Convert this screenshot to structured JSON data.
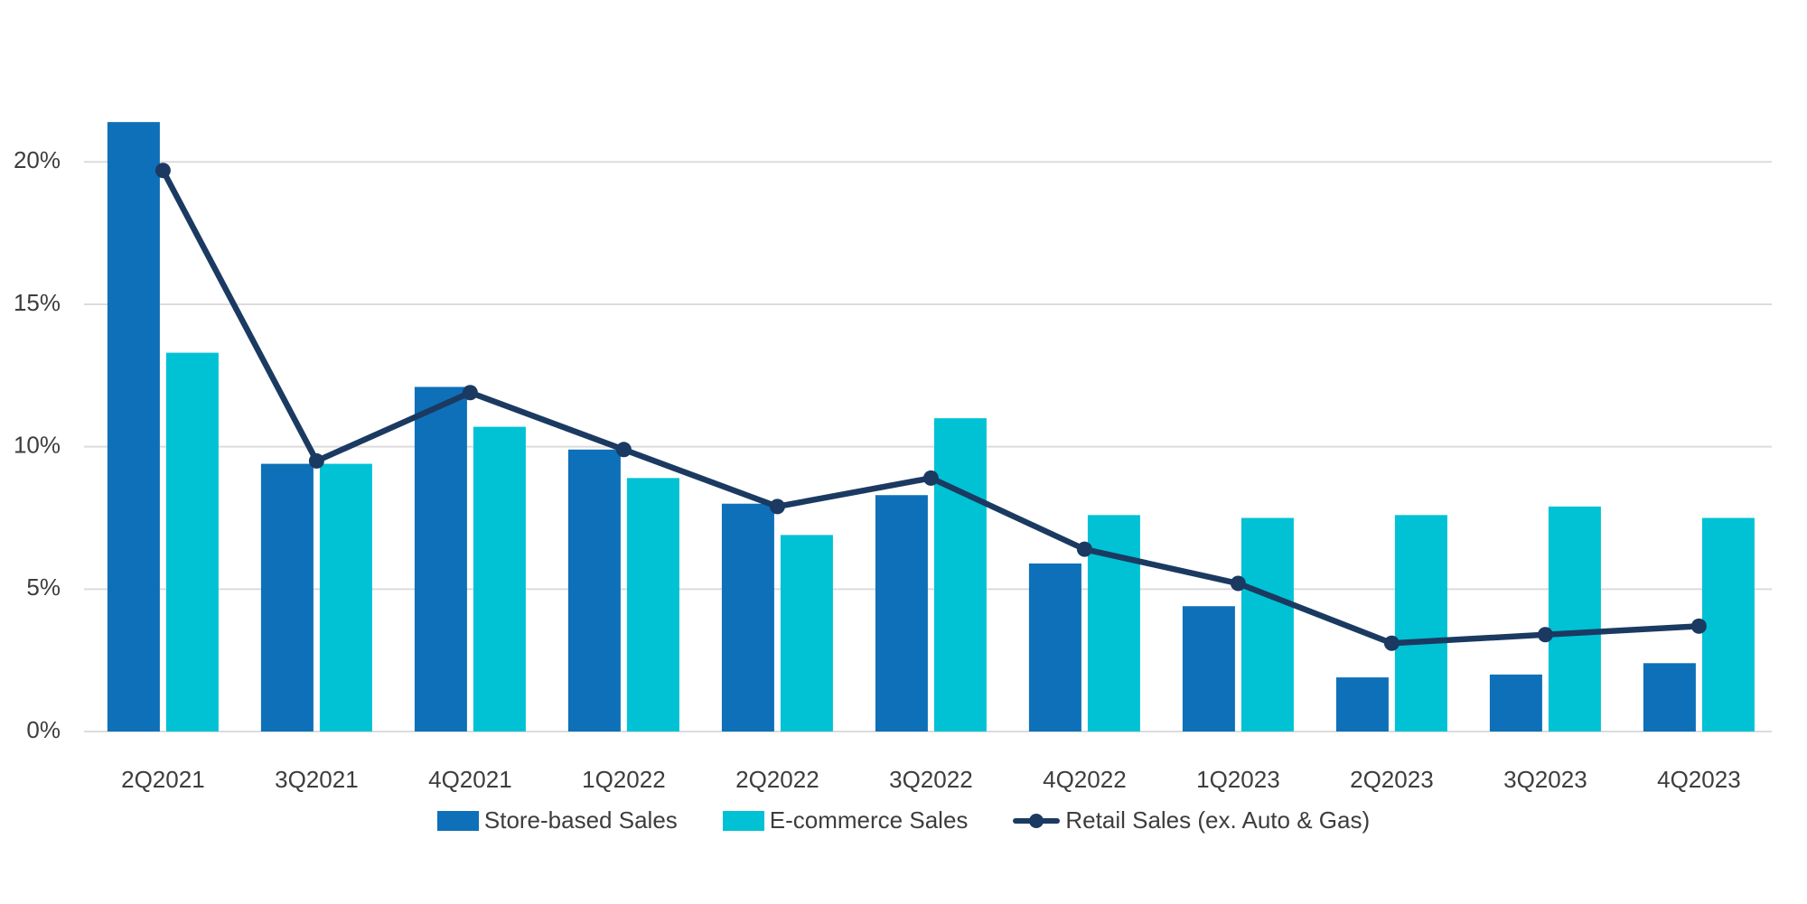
{
  "chart_data": {
    "type": "bar",
    "subtype": "grouped-bars-with-line-overlay",
    "title": "",
    "xlabel": "",
    "ylabel": "",
    "categories": [
      "2Q2021",
      "3Q2021",
      "4Q2021",
      "1Q2022",
      "2Q2022",
      "3Q2022",
      "4Q2022",
      "1Q2023",
      "2Q2023",
      "3Q2023",
      "4Q2023"
    ],
    "series": [
      {
        "name": "Store-based Sales",
        "type": "bar",
        "color": "#0e70b8",
        "values": [
          21.4,
          9.4,
          12.1,
          9.9,
          8.0,
          8.3,
          5.9,
          4.4,
          1.9,
          2.0,
          2.4
        ]
      },
      {
        "name": "E-commerce Sales",
        "type": "bar",
        "color": "#00c2d4",
        "values": [
          13.3,
          9.4,
          10.7,
          8.9,
          6.9,
          11.0,
          7.6,
          7.5,
          7.6,
          7.9,
          7.5
        ]
      },
      {
        "name": "Retail Sales (ex. Auto & Gas)",
        "type": "line",
        "color": "#1b3a61",
        "values": [
          19.7,
          9.5,
          11.9,
          9.9,
          7.9,
          8.9,
          6.4,
          5.2,
          3.1,
          3.4,
          3.7
        ]
      }
    ],
    "yticks": [
      {
        "value": 0,
        "label": "0%"
      },
      {
        "value": 5,
        "label": "5%"
      },
      {
        "value": 10,
        "label": "10%"
      },
      {
        "value": 15,
        "label": "15%"
      },
      {
        "value": 20,
        "label": "20%"
      }
    ],
    "ylim": [
      0,
      22.5
    ],
    "grid": true,
    "grid_color": "#dcdcdc",
    "text_color": "#3d3d3d",
    "background_color": "#ffffff",
    "legend_position": "bottom"
  }
}
